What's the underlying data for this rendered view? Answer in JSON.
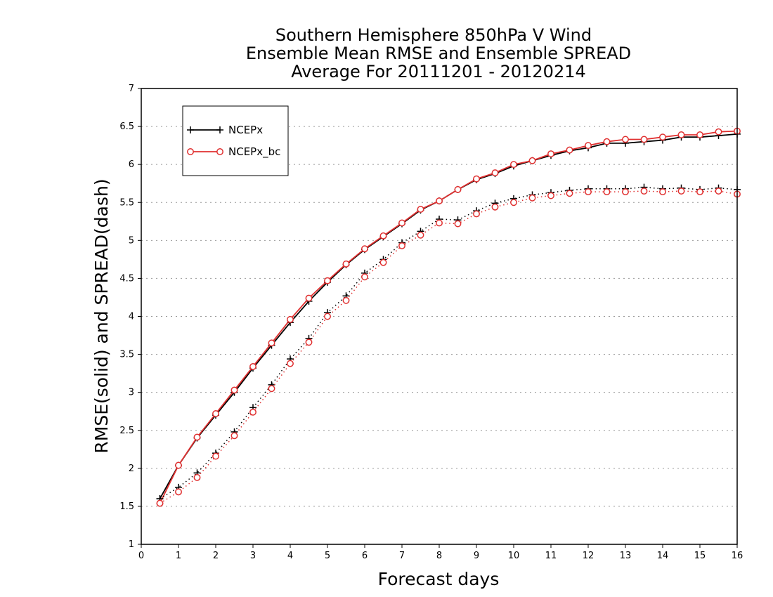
{
  "chart_data": {
    "type": "line",
    "title": [
      "Southern Hemisphere 850hPa V Wind",
      "Ensemble Mean RMSE and Ensemble SPREAD",
      "Average For 20111201 - 20120214"
    ],
    "xlabel": "Forecast days",
    "ylabel": "RMSE(solid) and SPREAD(dash)",
    "xlim": [
      0,
      16
    ],
    "ylim": [
      1,
      7
    ],
    "xticks": [
      "0",
      "1",
      "2",
      "3",
      "4",
      "5",
      "6",
      "7",
      "8",
      "9",
      "10",
      "11",
      "12",
      "13",
      "14",
      "15",
      "16"
    ],
    "yticks": [
      "1",
      "1.5",
      "2",
      "2.5",
      "3",
      "3.5",
      "4",
      "4.5",
      "5",
      "5.5",
      "6",
      "6.5",
      "7"
    ],
    "grid": "horizontal dotted",
    "legend_position": "top-left",
    "x": [
      0.5,
      1,
      1.5,
      2,
      2.5,
      3,
      3.5,
      4,
      4.5,
      5,
      5.5,
      6,
      6.5,
      7,
      7.5,
      8,
      8.5,
      9,
      9.5,
      10,
      10.5,
      11,
      11.5,
      12,
      12.5,
      13,
      13.5,
      14,
      14.5,
      15,
      15.5,
      16
    ],
    "series": [
      {
        "name": "NCEPx",
        "metric": "RMSE",
        "style": "solid",
        "marker": "plus",
        "color": "#000000",
        "values": [
          1.6,
          2.04,
          2.4,
          2.7,
          3.0,
          3.32,
          3.62,
          3.92,
          4.2,
          4.45,
          4.68,
          4.88,
          5.05,
          5.22,
          5.4,
          5.52,
          5.67,
          5.8,
          5.88,
          5.98,
          6.05,
          6.12,
          6.18,
          6.22,
          6.28,
          6.28,
          6.3,
          6.32,
          6.36,
          6.36,
          6.38,
          6.4
        ]
      },
      {
        "name": "NCEPx_bc",
        "metric": "RMSE",
        "style": "solid",
        "marker": "circle",
        "color": "#e03030",
        "values": [
          1.54,
          2.04,
          2.41,
          2.72,
          3.03,
          3.34,
          3.65,
          3.96,
          4.24,
          4.47,
          4.69,
          4.89,
          5.06,
          5.23,
          5.41,
          5.52,
          5.67,
          5.81,
          5.89,
          6.0,
          6.05,
          6.14,
          6.19,
          6.25,
          6.3,
          6.33,
          6.33,
          6.36,
          6.39,
          6.39,
          6.43,
          6.44
        ]
      },
      {
        "name": "NCEPx",
        "metric": "SPREAD",
        "style": "dotted",
        "marker": "plus",
        "color": "#000000",
        "values": [
          1.6,
          1.75,
          1.94,
          2.2,
          2.48,
          2.8,
          3.1,
          3.44,
          3.71,
          4.05,
          4.27,
          4.57,
          4.75,
          4.97,
          5.12,
          5.28,
          5.27,
          5.39,
          5.49,
          5.55,
          5.6,
          5.63,
          5.66,
          5.68,
          5.68,
          5.68,
          5.7,
          5.68,
          5.69,
          5.67,
          5.69,
          5.67
        ]
      },
      {
        "name": "NCEPx_bc",
        "metric": "SPREAD",
        "style": "dotted",
        "marker": "circle",
        "color": "#e03030",
        "values": [
          1.54,
          1.69,
          1.88,
          2.16,
          2.43,
          2.74,
          3.05,
          3.38,
          3.66,
          4.0,
          4.21,
          4.52,
          4.71,
          4.93,
          5.07,
          5.23,
          5.22,
          5.35,
          5.44,
          5.5,
          5.56,
          5.59,
          5.62,
          5.64,
          5.64,
          5.64,
          5.65,
          5.64,
          5.65,
          5.64,
          5.65,
          5.61
        ]
      }
    ],
    "legend": [
      {
        "label": "NCEPx",
        "marker": "plus",
        "color": "#000000"
      },
      {
        "label": "NCEPx_bc",
        "marker": "circle",
        "color": "#e03030"
      }
    ]
  }
}
